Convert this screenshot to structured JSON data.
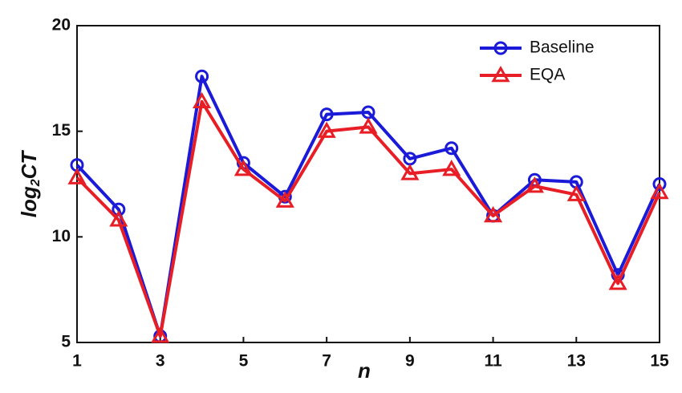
{
  "chart_data": {
    "type": "line",
    "x": [
      1,
      2,
      3,
      4,
      5,
      6,
      7,
      8,
      9,
      10,
      11,
      12,
      13,
      14,
      15
    ],
    "series": [
      {
        "name": "Baseline",
        "color": "#1a1ad8",
        "marker": "circle",
        "values": [
          13.4,
          11.3,
          5.3,
          17.6,
          13.5,
          11.9,
          15.8,
          15.9,
          13.7,
          14.2,
          11.0,
          12.7,
          12.6,
          8.2,
          12.5
        ]
      },
      {
        "name": "EQA",
        "color": "#e81e26",
        "marker": "triangle",
        "values": [
          12.8,
          10.8,
          5.3,
          16.4,
          13.2,
          11.7,
          15.0,
          15.2,
          13.0,
          13.2,
          11.0,
          12.4,
          12.0,
          7.8,
          12.1
        ]
      }
    ],
    "xlabel": "n",
    "ylabel": [
      "log",
      "2",
      "CT"
    ],
    "xlim": [
      1,
      15
    ],
    "xticks": [
      1,
      3,
      5,
      7,
      9,
      11,
      13,
      15
    ],
    "ylim": [
      5,
      20
    ],
    "yticks": [
      5,
      10,
      15,
      20
    ],
    "legend": "upper right"
  }
}
